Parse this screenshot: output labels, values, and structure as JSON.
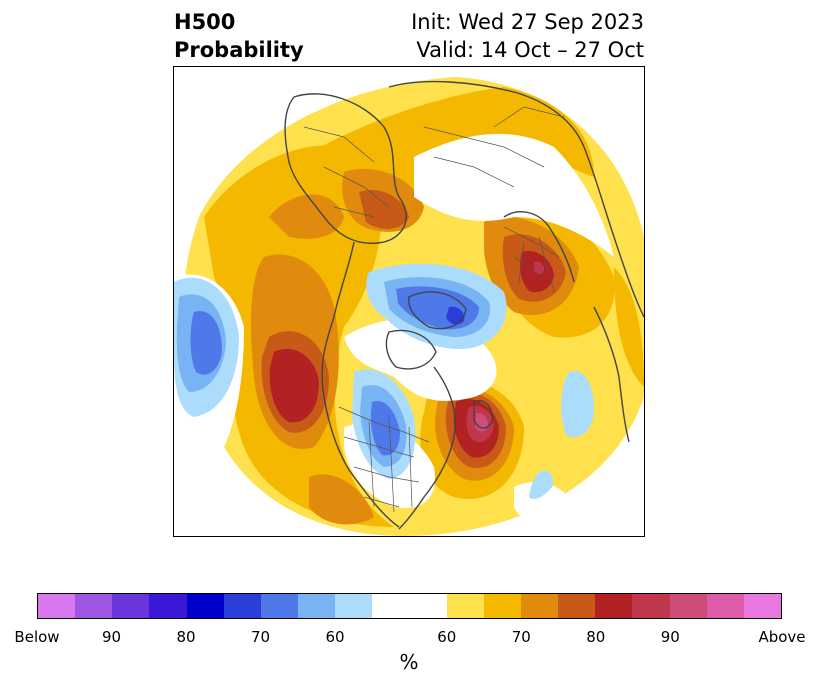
{
  "title": {
    "left_line1": "H500",
    "left_line2": "Probability",
    "right_line1": "Init: Wed 27 Sep 2023",
    "right_line2": "Valid: 14 Oct – 27 Oct"
  },
  "colorbar": {
    "unit": "%",
    "tick_labels": [
      "Below",
      "90",
      "80",
      "70",
      "60",
      "60",
      "70",
      "80",
      "90",
      "Above"
    ],
    "colors": [
      "#d977ee",
      "#9f56e4",
      "#6a36dc",
      "#3a18d6",
      "#0000cc",
      "#2a3ed9",
      "#4f78e8",
      "#78b3f4",
      "#acdcfb",
      "#ffffff",
      "#ffe14d",
      "#f5b800",
      "#e08a0e",
      "#c85a18",
      "#b22222",
      "#c0364a",
      "#cc4c7a",
      "#dd5caa",
      "#e878e0"
    ],
    "weights": [
      1,
      1,
      1,
      1,
      1,
      1,
      1,
      1,
      1,
      2,
      1,
      1,
      1,
      1,
      1,
      1,
      1,
      1,
      1
    ]
  },
  "map": {
    "projection": "north-polar-stereographic",
    "field": "500 hPa height anomaly probability",
    "below_color_scale": [
      "#acdcfb",
      "#78b3f4",
      "#4f78e8",
      "#2a3ed9",
      "#0000cc"
    ],
    "above_color_scale": [
      "#ffe14d",
      "#f5b800",
      "#e08a0e",
      "#c85a18",
      "#b22222",
      "#c0364a",
      "#cc4c7a"
    ]
  }
}
